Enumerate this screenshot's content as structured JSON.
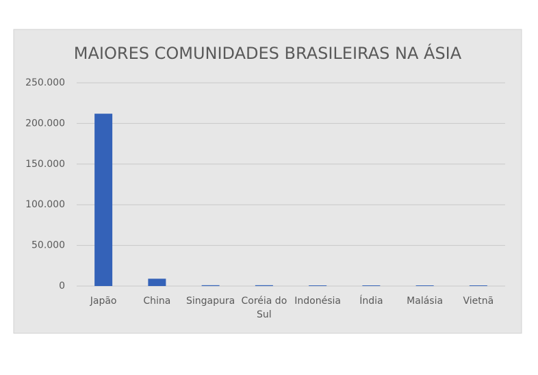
{
  "chart_data": {
    "type": "bar",
    "title": "MAIORES COMUNIDADES BRASILEIRAS NA ÁSIA",
    "categories": [
      "Japão",
      "China",
      "Singapura",
      "Coréia do Sul",
      "Indonésia",
      "Índia",
      "Malásia",
      "Vietnã"
    ],
    "values": [
      212000,
      9000,
      1000,
      1000,
      800,
      800,
      800,
      800
    ],
    "color": "#3462b8",
    "ylim": [
      0,
      250000
    ],
    "yticks": [
      0,
      {
        "value": 50000,
        "label": "50.000"
      },
      {
        "value": 100000,
        "label": "100.000"
      },
      {
        "value": 150000,
        "label": "150.000"
      },
      {
        "value": 200000,
        "label": "200.000"
      },
      {
        "value": 250000,
        "label": "250.000"
      }
    ],
    "grid": true
  }
}
